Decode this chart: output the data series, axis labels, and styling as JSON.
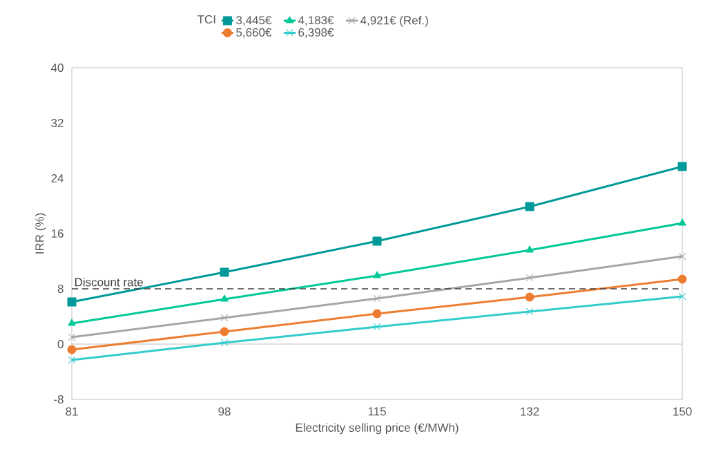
{
  "chart_data": {
    "type": "line",
    "xlabel": "Electricity selling price (€/MWh)",
    "ylabel": "IRR (%)",
    "legend_title": "TCI",
    "legend": "top",
    "categories": [
      "81",
      "98",
      "115",
      "132",
      "150"
    ],
    "ylim": [
      -8,
      40
    ],
    "yticks": [
      -8,
      0,
      8,
      16,
      24,
      32,
      40
    ],
    "grid": false,
    "line_style": "solid",
    "series": [
      {
        "name": "3,445€",
        "color": "#009999",
        "marker": "square",
        "values": [
          6.1,
          10.4,
          14.9,
          19.9,
          25.7
        ]
      },
      {
        "name": "4,183€",
        "color": "#00c896",
        "marker": "triangle",
        "values": [
          3.0,
          6.5,
          9.9,
          13.6,
          17.5
        ]
      },
      {
        "name": "4,921€ (Ref.)",
        "color": "#a6a6a6",
        "marker": "cross",
        "values": [
          1.0,
          3.8,
          6.6,
          9.6,
          12.7
        ]
      },
      {
        "name": "5,660€",
        "color": "#ed7d31",
        "marker": "circle",
        "values": [
          -0.8,
          1.8,
          4.4,
          6.8,
          9.4
        ]
      },
      {
        "name": "6,398€",
        "color": "#33cccc",
        "marker": "cross",
        "values": [
          -2.3,
          0.2,
          2.5,
          4.7,
          6.9
        ]
      }
    ],
    "ref_lines": [
      {
        "axis": "y",
        "value": 8,
        "label": "Discount rate",
        "color": "#404040",
        "line_style": "dashed"
      }
    ]
  }
}
